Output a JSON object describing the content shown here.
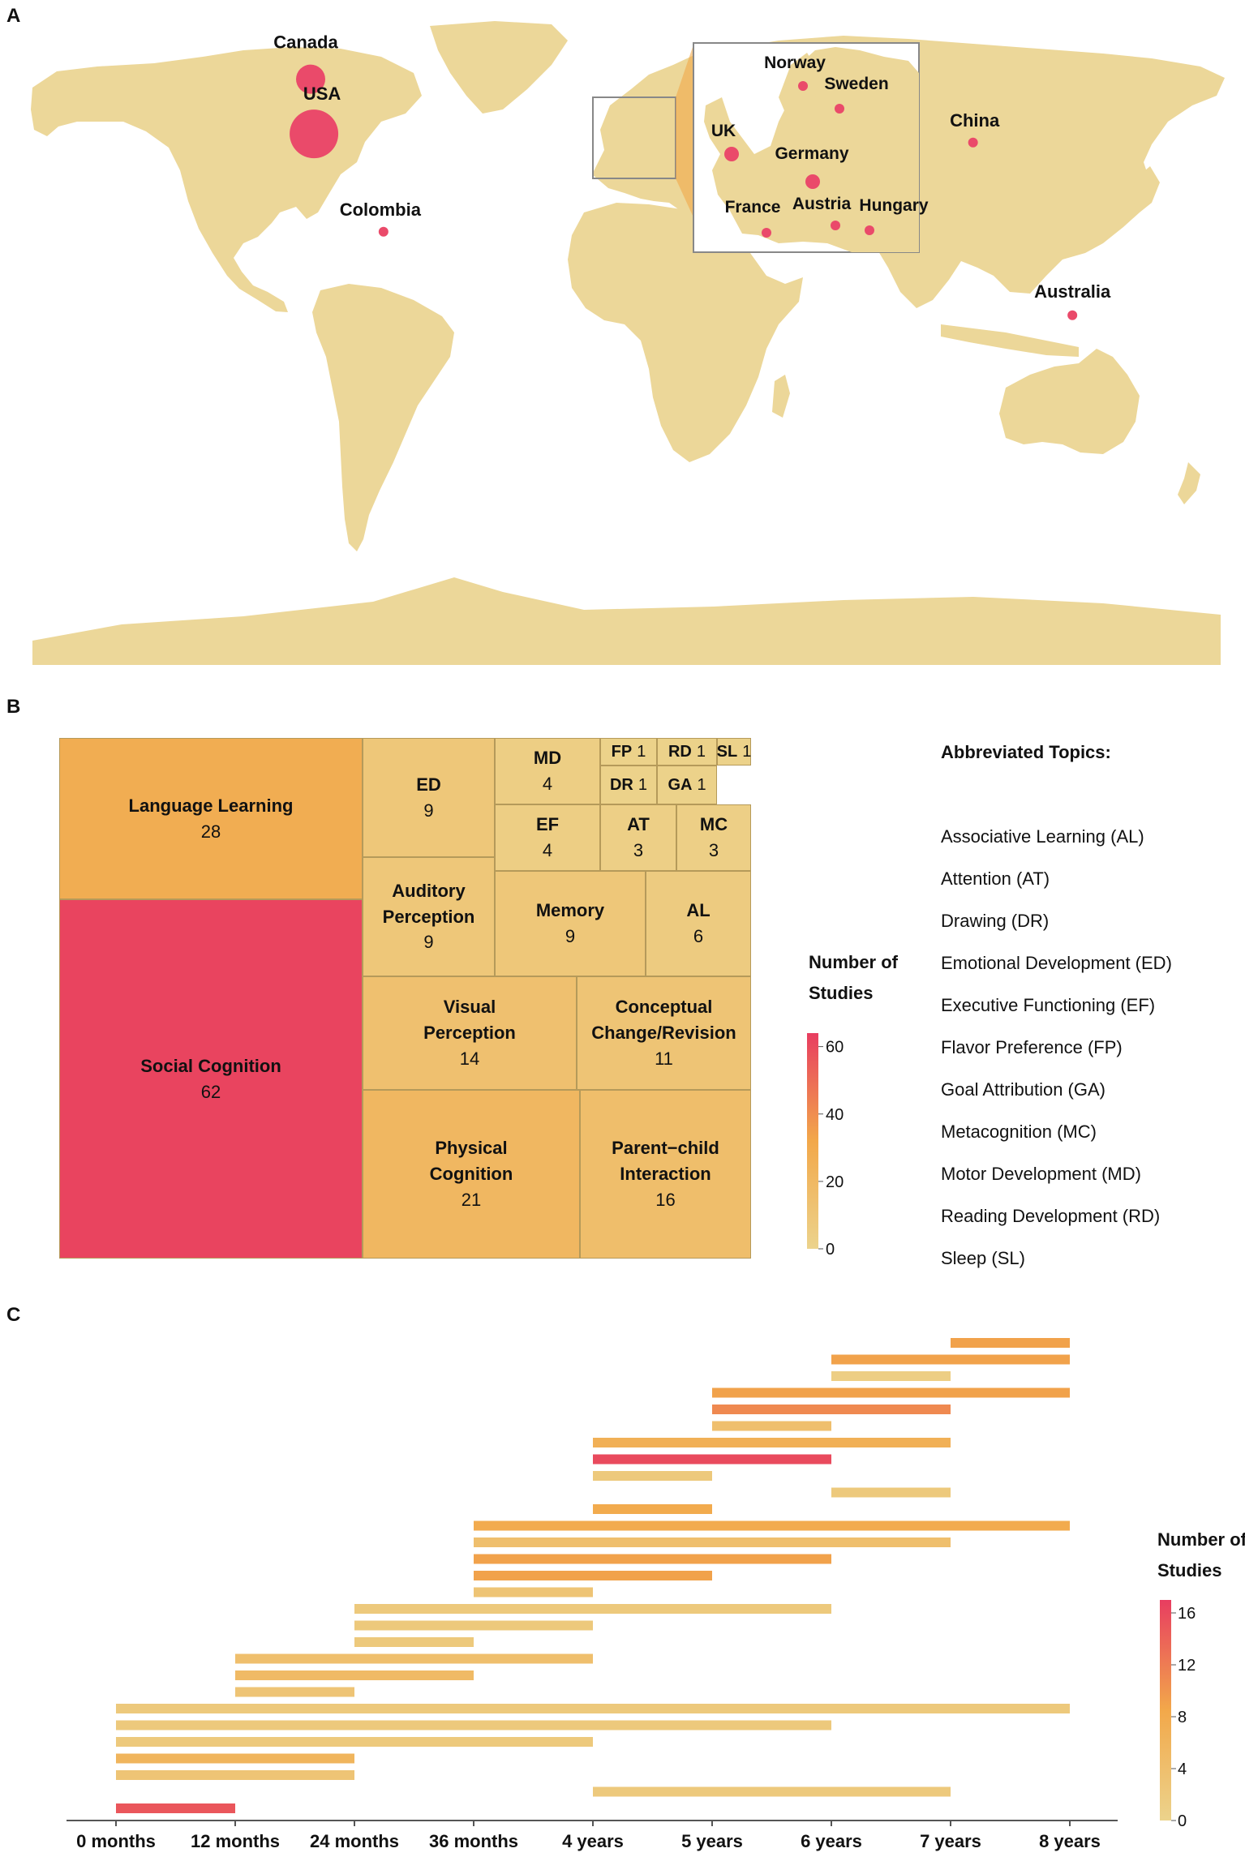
{
  "panels": {
    "a": "A",
    "b": "B",
    "c": "C"
  },
  "colors": {
    "land": "#ecd799",
    "marker": "#ea4a6a",
    "low": "#ecd38c",
    "mid": "#f2a84a",
    "high": "#e83d60",
    "background": "#ffffff"
  },
  "map": {
    "countries": [
      {
        "name": "Canada",
        "lon": -96,
        "lat": 57,
        "size": "large"
      },
      {
        "name": "USA",
        "lon": -95,
        "lat": 38,
        "size": "xlarge"
      },
      {
        "name": "Colombia",
        "lon": -74,
        "lat": 4,
        "size": "small"
      },
      {
        "name": "Australia",
        "lon": 134,
        "lat": -25,
        "size": "small"
      },
      {
        "name": "China",
        "lon": 104,
        "lat": 35,
        "size": "small"
      }
    ],
    "inset_countries": [
      {
        "name": "Norway",
        "size": "small"
      },
      {
        "name": "Sweden",
        "size": "small"
      },
      {
        "name": "UK",
        "size": "medium"
      },
      {
        "name": "Germany",
        "size": "medium"
      },
      {
        "name": "France",
        "size": "small"
      },
      {
        "name": "Austria",
        "size": "small"
      },
      {
        "name": "Hungary",
        "size": "small"
      }
    ]
  },
  "treemap": {
    "title": "Number of Studies",
    "scale_ticks": [
      60,
      40,
      20,
      0
    ],
    "cells": [
      {
        "id": "language-learning",
        "label": "Language Learning",
        "value": 28
      },
      {
        "id": "social-cognition",
        "label": "Social Cognition",
        "value": 62
      },
      {
        "id": "ed",
        "label": "ED",
        "value": 9
      },
      {
        "id": "md",
        "label": "MD",
        "value": 4
      },
      {
        "id": "fp",
        "label": "FP",
        "value": 1
      },
      {
        "id": "rd",
        "label": "RD",
        "value": 1
      },
      {
        "id": "sl",
        "label": "SL",
        "value": 1
      },
      {
        "id": "dr",
        "label": "DR",
        "value": 1
      },
      {
        "id": "ga",
        "label": "GA",
        "value": 1
      },
      {
        "id": "ef",
        "label": "EF",
        "value": 4
      },
      {
        "id": "at",
        "label": "AT",
        "value": 3
      },
      {
        "id": "mc",
        "label": "MC",
        "value": 3
      },
      {
        "id": "auditory-perception",
        "label": "Auditory Perception",
        "value": 9
      },
      {
        "id": "memory",
        "label": "Memory",
        "value": 9
      },
      {
        "id": "al",
        "label": "AL",
        "value": 6
      },
      {
        "id": "visual-perception",
        "label": "Visual Perception",
        "value": 14
      },
      {
        "id": "conceptual-change",
        "label": "Conceptual Change/Revision",
        "value": 11
      },
      {
        "id": "physical-cognition",
        "label": "Physical Cognition",
        "value": 21
      },
      {
        "id": "parent-child",
        "label": "Parent−child Interaction",
        "value": 16
      }
    ],
    "abbreviations_title": "Abbreviated Topics:",
    "abbreviations": [
      "Associative Learning (AL)",
      "Attention (AT)",
      "Drawing (DR)",
      "Emotional Development (ED)",
      "Executive Functioning (EF)",
      "Flavor Preference (FP)",
      "Goal Attribution (GA)",
      "Metacognition (MC)",
      "Motor Development (MD)",
      "Reading Development (RD)",
      "Sleep (SL)"
    ]
  },
  "chart_data": {
    "type": "bar",
    "subtype": "age-range-segments",
    "x_ticks": [
      "0 months",
      "12 months",
      "24 months",
      "36 months",
      "4 years",
      "5 years",
      "6 years",
      "7 years",
      "8 years"
    ],
    "x_unit": "age",
    "legend_title": "Number of Studies",
    "legend_ticks": [
      16,
      12,
      8,
      4,
      0
    ],
    "color_range": [
      0,
      17
    ],
    "segments": [
      {
        "start": "7 years",
        "end": "8 years",
        "count": 9
      },
      {
        "start": "6 years",
        "end": "8 years",
        "count": 9
      },
      {
        "start": "6 years",
        "end": "7 years",
        "count": 1
      },
      {
        "start": "5 years",
        "end": "8 years",
        "count": 9
      },
      {
        "start": "5 years",
        "end": "7 years",
        "count": 11
      },
      {
        "start": "5 years",
        "end": "6 years",
        "count": 4
      },
      {
        "start": "4 years",
        "end": "7 years",
        "count": 7
      },
      {
        "start": "4 years",
        "end": "6 years",
        "count": 16
      },
      {
        "start": "4 years",
        "end": "5 years",
        "count": 2
      },
      {
        "start": "6 years",
        "end": "7 years",
        "count": 2
      },
      {
        "start": "4 years",
        "end": "5 years",
        "count": 8
      },
      {
        "start": "36 months",
        "end": "8 years",
        "count": 8
      },
      {
        "start": "36 months",
        "end": "7 years",
        "count": 4
      },
      {
        "start": "36 months",
        "end": "6 years",
        "count": 9
      },
      {
        "start": "36 months",
        "end": "5 years",
        "count": 9
      },
      {
        "start": "36 months",
        "end": "4 years",
        "count": 3
      },
      {
        "start": "24 months",
        "end": "6 years",
        "count": 2
      },
      {
        "start": "24 months",
        "end": "4 years",
        "count": 2
      },
      {
        "start": "24 months",
        "end": "36 months",
        "count": 2
      },
      {
        "start": "12 months",
        "end": "4 years",
        "count": 4
      },
      {
        "start": "12 months",
        "end": "36 months",
        "count": 5
      },
      {
        "start": "12 months",
        "end": "24 months",
        "count": 3
      },
      {
        "start": "0 months",
        "end": "8 years",
        "count": 2
      },
      {
        "start": "0 months",
        "end": "6 years",
        "count": 2
      },
      {
        "start": "0 months",
        "end": "4 years",
        "count": 2
      },
      {
        "start": "0 months",
        "end": "24 months",
        "count": 6
      },
      {
        "start": "0 months",
        "end": "24 months",
        "count": 3
      },
      {
        "start": "4 years",
        "end": "7 years",
        "count": 2
      },
      {
        "start": "0 months",
        "end": "12 months",
        "count": 15
      }
    ]
  }
}
